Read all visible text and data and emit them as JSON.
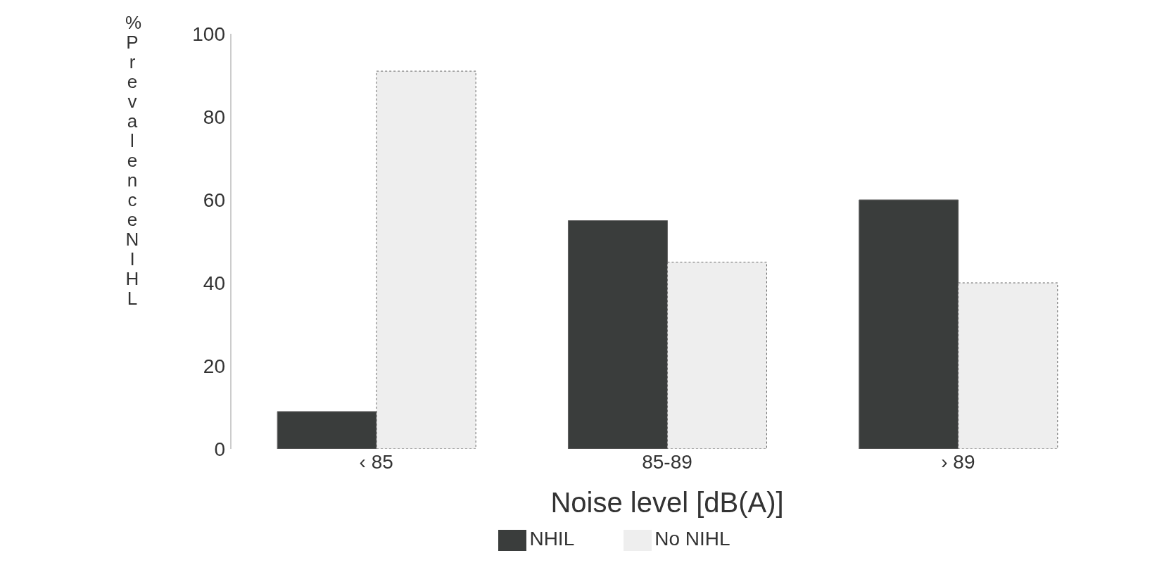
{
  "chart_data": {
    "type": "bar",
    "xlabel": "Noise level [dB(A)]",
    "ylabel": "% Prevalence NIHL",
    "categories": [
      "‹ 85",
      "85-89",
      "› 89"
    ],
    "series": [
      {
        "name": "NHIL",
        "color": "#3a3d3c",
        "values": [
          9,
          55,
          60
        ]
      },
      {
        "name": "No NIHL",
        "color": "#eeeeee",
        "values": [
          91,
          45,
          40
        ]
      }
    ],
    "ylim": [
      0,
      100
    ],
    "yticks": [
      0,
      20,
      40,
      60,
      80,
      100
    ],
    "legend": "bottom"
  }
}
